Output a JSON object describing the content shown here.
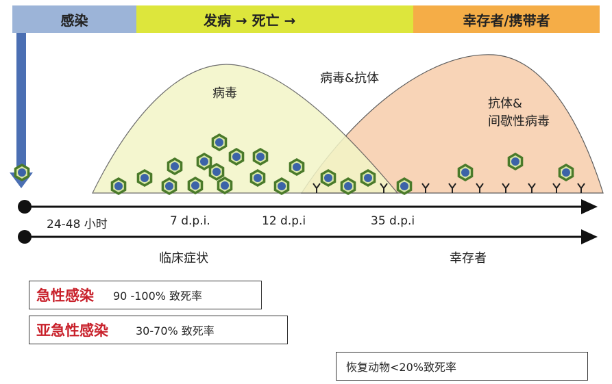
{
  "bands": {
    "infection": "感染",
    "disease_death": "发病 → 死亡 →",
    "survivor_carrier": "幸存者/携带者"
  },
  "curves": {
    "virus": "病毒",
    "virus_antibody": "病毒&抗体",
    "antibody_intermittent_1": "抗体&",
    "antibody_intermittent_2": "间歇性病毒"
  },
  "timeline": {
    "ticks": [
      "24-48 小时",
      "7 d.p.i.",
      "12 d.p.i",
      "35 d.p.i"
    ],
    "clinical": "临床症状",
    "survivor": "幸存者"
  },
  "boxes": {
    "acute": {
      "label": "急性感染",
      "rate": "90 -100% 致死率"
    },
    "subacute": {
      "label": "亚急性感染",
      "rate": "30-70% 致死率"
    },
    "recovered": {
      "rate": "恢复动物<20%致死率"
    }
  },
  "colors": {
    "virus_fill": "#f4f6c8",
    "antibody_fill": "#f8cfae",
    "virion_outer": "#4a7a2a",
    "virion_inner": "#3c63a8",
    "arrow_blue": "#4b6fb3"
  },
  "icons": [
    "virion-icon",
    "antibody-icon",
    "timeline-arrow-icon"
  ]
}
